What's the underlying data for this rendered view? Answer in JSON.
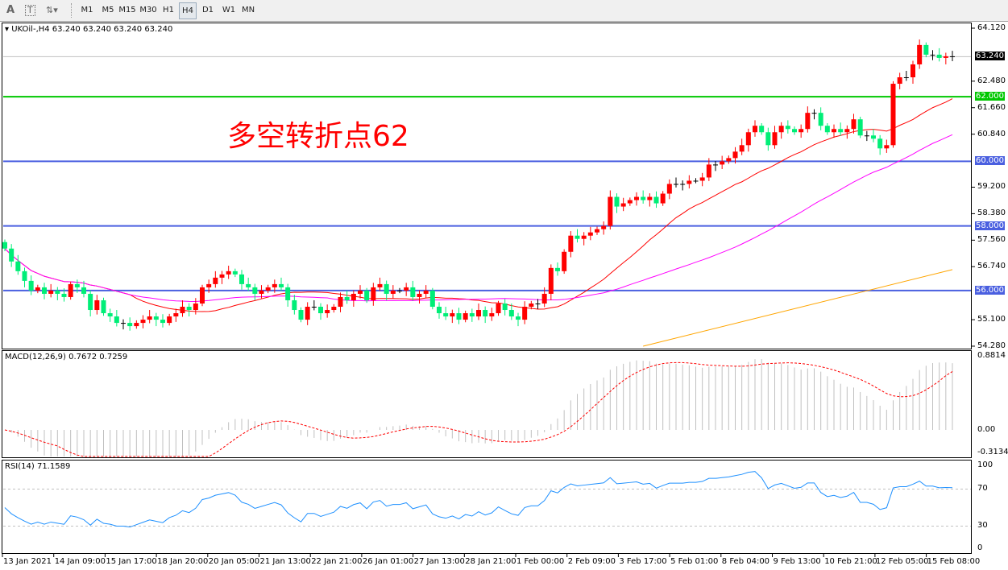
{
  "toolbar": {
    "icons": [
      "text-icon",
      "text-label-icon",
      "arrows-icon"
    ],
    "timeframes": [
      "M1",
      "M5",
      "M15",
      "M30",
      "H1",
      "H4",
      "D1",
      "W1",
      "MN"
    ],
    "active_timeframe": "H4"
  },
  "main": {
    "title": "UKOil-,H4  63.240 63.240 63.240 63.240",
    "annotation": "多空转折点62",
    "price_ticks": [
      "64.120",
      "62.480",
      "61.660",
      "60.840",
      "59.200",
      "58.380",
      "57.560",
      "56.740",
      "55.100",
      "54.280"
    ],
    "current_price": "63.240",
    "levels": [
      {
        "label": "62.000",
        "value": 62.0,
        "color": "#00c800"
      },
      {
        "label": "60.000",
        "value": 60.0,
        "color": "#4a5fe0"
      },
      {
        "label": "58.000",
        "value": 58.0,
        "color": "#4a5fe0"
      },
      {
        "label": "56.000",
        "value": 56.0,
        "color": "#4a5fe0"
      }
    ]
  },
  "macd": {
    "title": "MACD(12,26,9) 0.7672 0.7259",
    "ticks": [
      "0.8814",
      "0.00",
      "-0.3134"
    ]
  },
  "rsi": {
    "title": "RSI(14) 71.1589",
    "ticks": [
      "100",
      "70",
      "30",
      "0"
    ]
  },
  "time_labels": [
    "13 Jan 2021",
    "14 Jan 09:00",
    "15 Jan 17:00",
    "18 Jan 20:00",
    "20 Jan 05:00",
    "21 Jan 13:00",
    "22 Jan 21:00",
    "26 Jan 01:00",
    "27 Jan 13:00",
    "28 Jan 21:00",
    "1 Feb 00:00",
    "2 Feb 09:00",
    "3 Feb 17:00",
    "5 Feb 01:00",
    "8 Feb 04:00",
    "9 Feb 13:00",
    "10 Feb 21:00",
    "12 Feb 05:00",
    "15 Feb 08:00"
  ],
  "chart_data": {
    "type": "candlestick",
    "symbol": "UKOil-",
    "timeframe": "H4",
    "ylim": [
      54.28,
      64.12
    ],
    "up_color": "#ff0000",
    "down_color": "#00ee77",
    "close": [
      57.3,
      56.9,
      56.6,
      56.3,
      56.0,
      56.1,
      55.9,
      56.0,
      55.9,
      55.8,
      56.2,
      56.1,
      55.9,
      55.4,
      55.7,
      55.3,
      55.2,
      55.0,
      55.0,
      54.9,
      55.0,
      55.1,
      55.2,
      55.1,
      55.0,
      55.2,
      55.3,
      55.5,
      55.4,
      55.6,
      56.1,
      56.2,
      56.4,
      56.5,
      56.6,
      56.5,
      56.2,
      56.1,
      55.9,
      56.0,
      56.1,
      56.2,
      56.1,
      55.7,
      55.4,
      55.1,
      55.5,
      55.5,
      55.3,
      55.4,
      55.5,
      55.8,
      55.7,
      55.9,
      56.0,
      55.7,
      56.1,
      56.2,
      55.9,
      56.0,
      56.0,
      56.1,
      55.8,
      55.9,
      56.0,
      55.5,
      55.3,
      55.2,
      55.3,
      55.1,
      55.3,
      55.2,
      55.4,
      55.2,
      55.3,
      55.6,
      55.4,
      55.2,
      55.1,
      55.5,
      55.6,
      55.6,
      55.9,
      56.7,
      56.6,
      57.2,
      57.7,
      57.6,
      57.7,
      57.8,
      57.9,
      58.0,
      58.9,
      58.6,
      58.7,
      58.8,
      58.9,
      58.8,
      58.9,
      58.7,
      59.0,
      59.3,
      59.3,
      59.3,
      59.4,
      59.4,
      59.5,
      59.9,
      59.9,
      60.0,
      60.1,
      60.3,
      60.5,
      60.9,
      61.1,
      60.9,
      60.5,
      60.9,
      61.1,
      61.0,
      60.9,
      61.0,
      61.5,
      61.5,
      61.1,
      60.9,
      61.0,
      60.9,
      61.0,
      61.3,
      60.8,
      60.8,
      60.7,
      60.4,
      60.5,
      62.4,
      62.6,
      62.6,
      63.0,
      63.6,
      63.3,
      63.3,
      63.2,
      63.25,
      63.24
    ],
    "moving_averages": [
      {
        "color": "#ff0000",
        "type": "SMA",
        "period": 20
      },
      {
        "color": "#ff00ff",
        "type": "SMA",
        "period": 50
      },
      {
        "color": "#ffa500",
        "from_bar": 97,
        "from": 54.28,
        "to": 56.65
      }
    ],
    "macd": {
      "fast": 12,
      "slow": 26,
      "signal": 9,
      "ylim": [
        -0.3134,
        0.8814
      ],
      "hist_color": "#c0c0c0",
      "signal_color": "#ff0000"
    },
    "rsi": {
      "period": 14,
      "ylim": [
        0,
        100
      ],
      "levels": [
        30,
        70
      ],
      "color": "#1e90ff"
    }
  }
}
